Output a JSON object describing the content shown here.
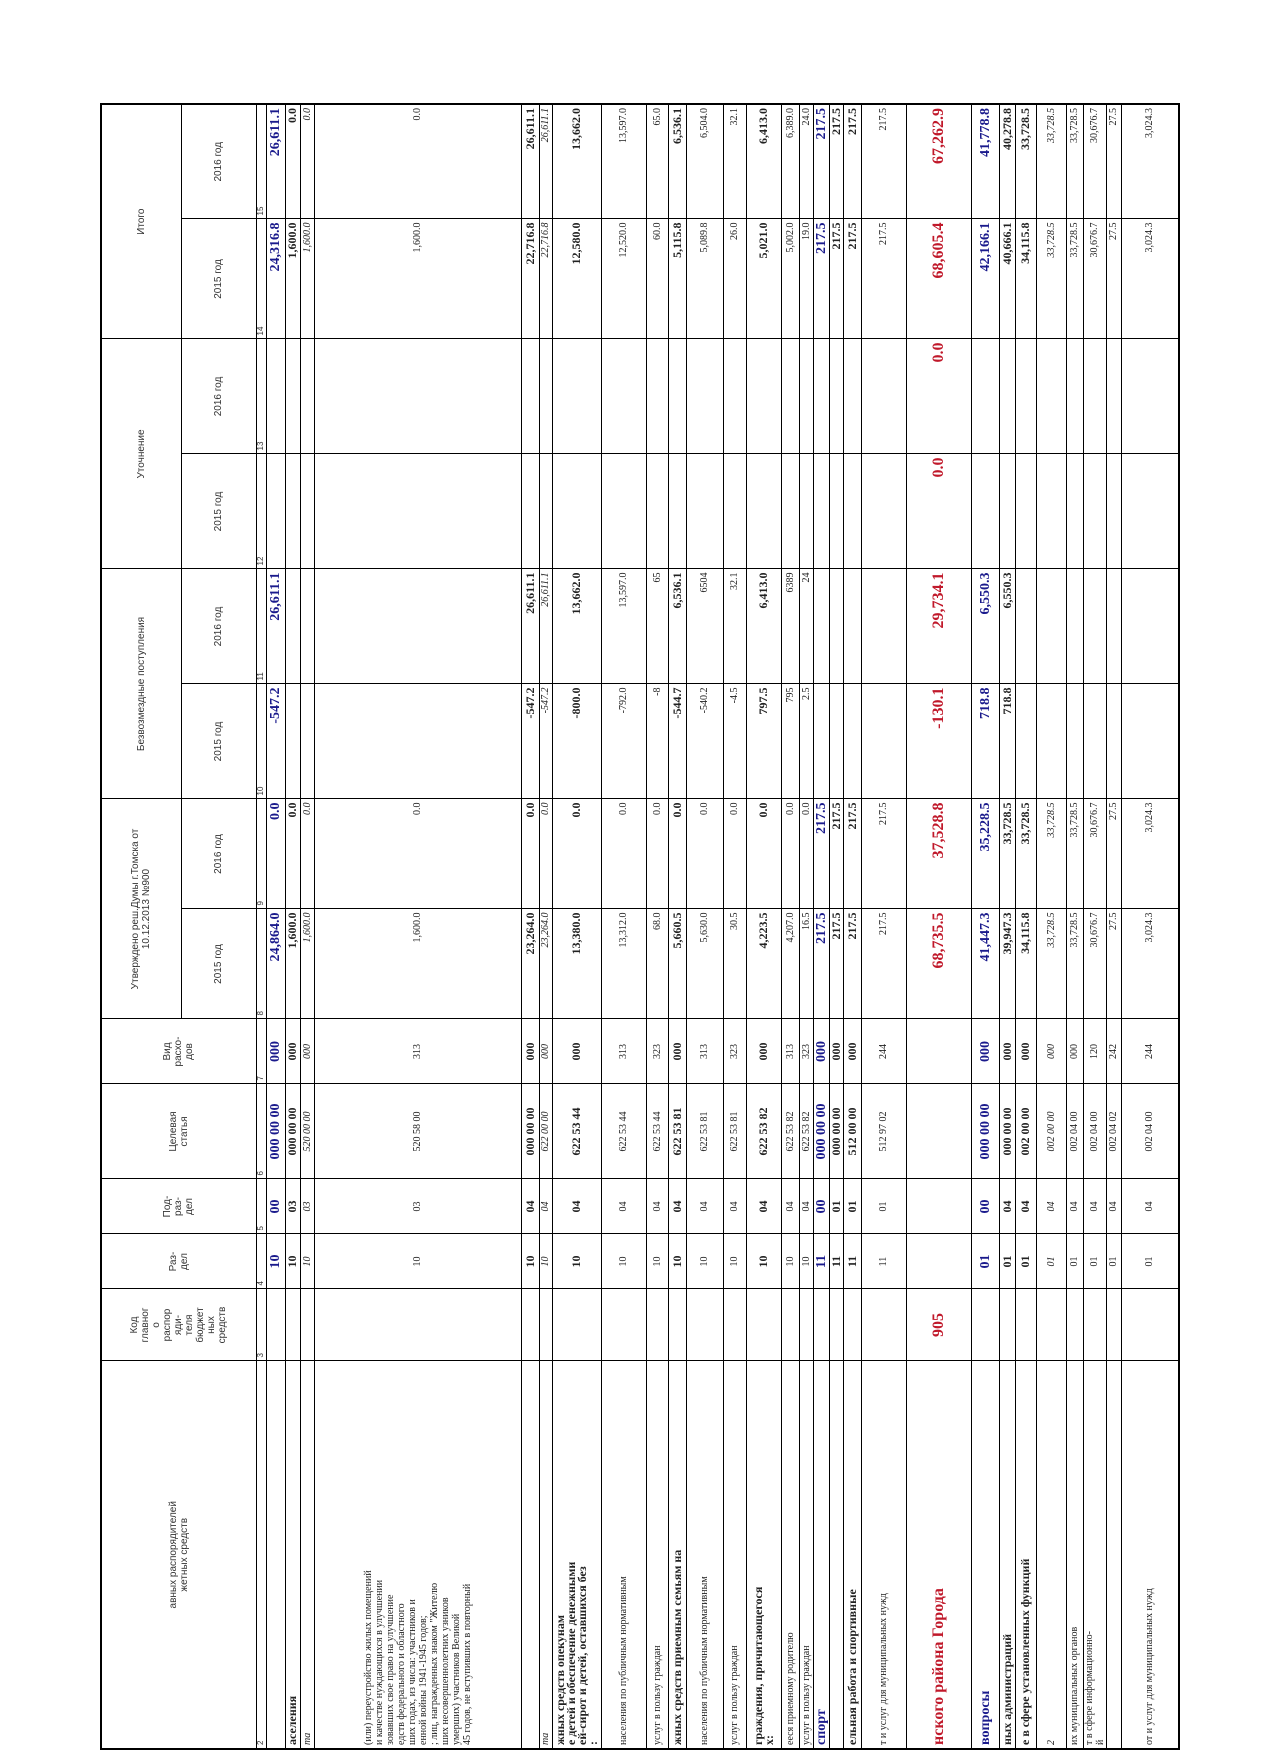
{
  "table": {
    "head": {
      "name": "авных распорядителей\nжетных средств",
      "code": "Код\nглавног\nо\nраспор\nяди-\nтеля\nбюджет\nных\nсредств",
      "section": "Раз-\nдел",
      "subsection": "Под-\nраз-\nдел",
      "article": "Целевая\nстатья",
      "expense_type": "Вид\nрасхо-\nдов",
      "groups": [
        "Утверждено реш.Думы г.Томска от\n10.12.2013 №900",
        "Безвозмездные поступления",
        "Уточнение",
        "Итого"
      ],
      "years": [
        "2015 год",
        "2016 год",
        "2015 год",
        "2016 год",
        "2015 год",
        "2016 год",
        "2015 год",
        "2016 год"
      ],
      "numbers": [
        "2",
        "3",
        "4",
        "5",
        "6",
        "7",
        "8",
        "9",
        "10",
        "11",
        "12",
        "13",
        "14",
        "15"
      ]
    },
    "rows": [
      [
        null,
        null,
        "10",
        "00",
        "000 00 00",
        "000",
        "24,864.0",
        "0.0",
        "-547.2",
        "26,611.1",
        null,
        null,
        "24,316.8",
        "26,611.1"
      ],
      [
        "аселения",
        null,
        "10",
        "03",
        "000 00 00",
        "000",
        "1,600.0",
        "0.0",
        null,
        null,
        null,
        null,
        "1,600.0",
        "0.0"
      ],
      [
        "ma",
        null,
        "10",
        "03",
        "520 00 00",
        "000",
        "1,600.0",
        "0.0",
        null,
        null,
        null,
        null,
        "1,600.0",
        "0.0"
      ],
      [
        "(или) переустройство жилых помещений\nи качестве нуждающихся в улучшении\nзовавших свое право на улучшение\nедств федерального и областного\nших годах, из числа: участников и\nенной войны 1941-1945 годов;\n; лиц, награжденных знаком \"Жителю\nших несовершеннолетних узников\nумерших) участников Великой\n45 годов, не вступивших в повторный",
        null,
        "10",
        "03",
        "520 58 00",
        "313",
        "1,600.0",
        "0.0",
        null,
        null,
        null,
        null,
        "1,600.0",
        "0.0"
      ],
      [
        null,
        null,
        "10",
        "04",
        "000 00 00",
        "000",
        "23,264.0",
        "0.0",
        "-547.2",
        "26,611.1",
        null,
        null,
        "22,716.8",
        "26,611.1"
      ],
      [
        "ma",
        null,
        "10",
        "04",
        "622 00 00",
        "000",
        "23,264.0",
        "0.0",
        "-547.2",
        "26,611.1",
        null,
        null,
        "22,716.8",
        "26,611.1"
      ],
      [
        "жных средств опекунам\nе детей и обеспечение денежными\nей-сирот и детей, оставшихся без\n:",
        null,
        "10",
        "04",
        "622 53 44",
        "000",
        "13,380.0",
        "0.0",
        "-800.0",
        "13,662.0",
        null,
        null,
        "12,580.0",
        "13,662.0"
      ],
      [
        "населения по публичным нормативным",
        null,
        "10",
        "04",
        "622 53 44",
        "313",
        "13,312.0",
        "0.0",
        "-792.0",
        "13,597.0",
        null,
        null,
        "12,520.0",
        "13,597.0"
      ],
      [
        "услуг в пользу граждан",
        null,
        "10",
        "04",
        "622 53 44",
        "323",
        "68.0",
        "0.0",
        "-8",
        "65",
        null,
        null,
        "60.0",
        "65.0"
      ],
      [
        "жных средств приемным семьям на",
        null,
        "10",
        "04",
        "622 53 81",
        "000",
        "5,660.5",
        "0.0",
        "-544.7",
        "6,536.1",
        null,
        null,
        "5,115.8",
        "6,536.1"
      ],
      [
        "населения по публичным нормативным",
        null,
        "10",
        "04",
        "622 53 81",
        "313",
        "5,630.0",
        "0.0",
        "-540.2",
        "6504",
        null,
        null,
        "5,089.8",
        "6,504.0"
      ],
      [
        "услуг в пользу граждан",
        null,
        "10",
        "04",
        "622 53 81",
        "323",
        "30.5",
        "0.0",
        "-4.5",
        "32.1",
        null,
        null,
        "26.0",
        "32.1"
      ],
      [
        "граждения, причитающегося\nх:",
        null,
        "10",
        "04",
        "622 53 82",
        "000",
        "4,223.5",
        "0.0",
        "797.5",
        "6,413.0",
        null,
        null,
        "5,021.0",
        "6,413.0"
      ],
      [
        "ееся приемному родителю",
        null,
        "10",
        "04",
        "622 53 82",
        "313",
        "4,207.0",
        "0.0",
        "795",
        "6389",
        null,
        null,
        "5,002.0",
        "6,389.0"
      ],
      [
        "услуг в пользу граждан",
        null,
        "10",
        "04",
        "622 53 82",
        "323",
        "16.5",
        "0.0",
        "2.5",
        "24",
        null,
        null,
        "19.0",
        "24.0"
      ],
      [
        "спорт",
        null,
        "11",
        "00",
        "000 00 00",
        "000",
        "217.5",
        "217.5",
        null,
        null,
        null,
        null,
        "217.5",
        "217.5"
      ],
      [
        null,
        null,
        "11",
        "01",
        "000 00 00",
        "000",
        "217.5",
        "217.5",
        null,
        null,
        null,
        null,
        "217.5",
        "217.5"
      ],
      [
        "ельная работа и спортивные",
        null,
        "11",
        "01",
        "512 00 00",
        "000",
        "217.5",
        "217.5",
        null,
        null,
        null,
        null,
        "217.5",
        "217.5"
      ],
      [
        "т и услуг для муниципальных нужд",
        null,
        "11",
        "01",
        "512 97 02",
        "244",
        "217.5",
        "217.5",
        null,
        null,
        null,
        null,
        "217.5",
        "217.5"
      ],
      [
        "нского района Города",
        "905",
        null,
        null,
        null,
        null,
        "68,735.5",
        "37,528.8",
        "-130.1",
        "29,734.1",
        "0.0",
        "0.0",
        "68,605.4",
        "67,262.9"
      ],
      [
        "вопросы",
        null,
        "01",
        "00",
        "000 00 00",
        "000",
        "41,447.3",
        "35,228.5",
        "718.8",
        "6,550.3",
        null,
        null,
        "42,166.1",
        "41,778.8"
      ],
      [
        "ных администраций",
        null,
        "01",
        "04",
        "000 00 00",
        "000",
        "39,947.3",
        "33,728.5",
        "718.8",
        "6,550.3",
        null,
        null,
        "40,666.1",
        "40,278.8"
      ],
      [
        "е в сфере установленных функций",
        null,
        "01",
        "04",
        "002 00 00",
        "000",
        "34,115.8",
        "33,728.5",
        null,
        null,
        null,
        null,
        "34,115.8",
        "33,728.5"
      ],
      [
        "2",
        null,
        "01",
        "04",
        "002 00 00",
        "000",
        "33,728.5",
        "33,728.5",
        null,
        null,
        null,
        null,
        "33,728.5",
        "33,728.5"
      ],
      [
        "их муниципальных органов",
        null,
        "01",
        "04",
        "002 04 00",
        "000",
        "33,728.5",
        "33,728.5",
        null,
        null,
        null,
        null,
        "33,728.5",
        "33,728.5"
      ],
      [
        "т в сфере информационно-\nй",
        null,
        "01",
        "04",
        "002 04 00",
        "120",
        "30,676.7",
        "30,676.7",
        null,
        null,
        null,
        null,
        "30,676.7",
        "30,676.7"
      ],
      [
        null,
        null,
        "01",
        "04",
        "002 04 02",
        "242",
        "27.5",
        "27.5",
        null,
        null,
        null,
        null,
        "27.5",
        "27.5"
      ],
      [
        "от и услуг для муниципальных нужд",
        null,
        "01",
        "04",
        "002 04 00",
        "244",
        "3,024.3",
        "3,024.3",
        null,
        null,
        null,
        null,
        "3,024.3",
        "3,024.3"
      ]
    ]
  }
}
